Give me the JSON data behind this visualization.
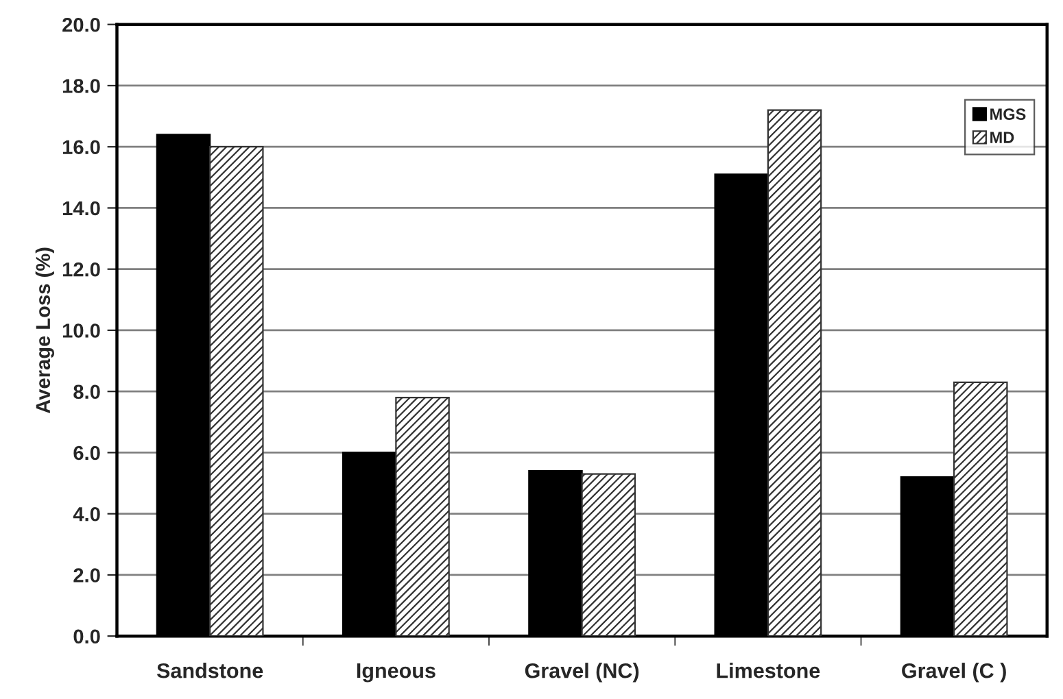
{
  "chart_data": {
    "type": "bar",
    "ylabel": "Average Loss (%)",
    "categories": [
      "Sandstone",
      "Igneous",
      "Gravel (NC)",
      "Limestone",
      "Gravel (C )"
    ],
    "series": [
      {
        "name": "MGS",
        "color": "#000000",
        "values": [
          16.4,
          6.0,
          5.4,
          15.1,
          5.2
        ]
      },
      {
        "name": "MD",
        "color": "#333333",
        "values": [
          16.0,
          7.8,
          5.3,
          17.2,
          8.3
        ]
      }
    ],
    "ylim": [
      0,
      20
    ],
    "yticks": [
      {
        "value": 0,
        "label": "0.0"
      },
      {
        "value": 2,
        "label": "2.0"
      },
      {
        "value": 4,
        "label": "4.0"
      },
      {
        "value": 6,
        "label": "6.0"
      },
      {
        "value": 8,
        "label": "8.0"
      },
      {
        "value": 10,
        "label": "10.0"
      },
      {
        "value": 12,
        "label": "12.0"
      },
      {
        "value": 14,
        "label": "14.0"
      },
      {
        "value": 16,
        "label": "16.0"
      },
      {
        "value": 18,
        "label": "18.0"
      },
      {
        "value": 20,
        "label": "20.0"
      }
    ],
    "grid": "y",
    "legend": "top right"
  }
}
